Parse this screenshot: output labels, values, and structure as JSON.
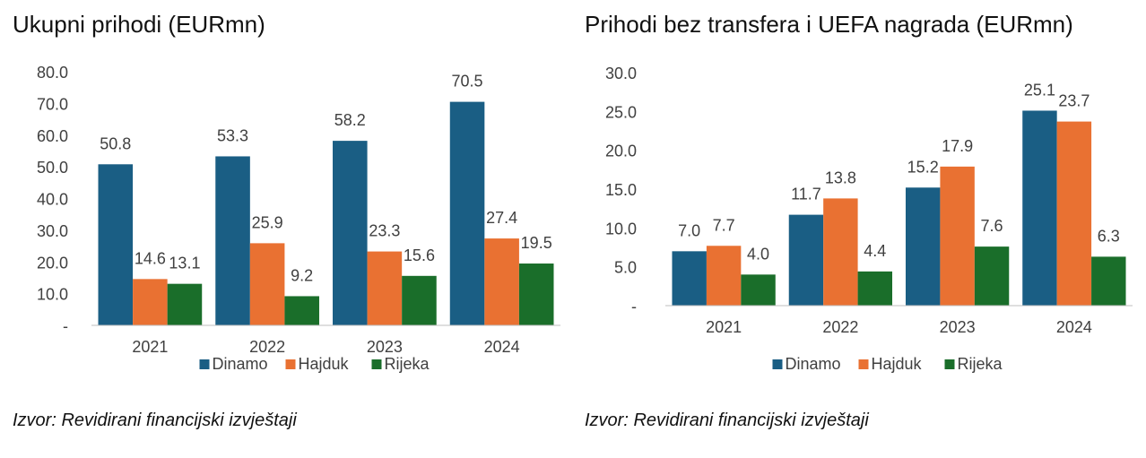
{
  "chart_data": [
    {
      "type": "bar",
      "title": "Ukupni prihodi (EURmn)",
      "categories": [
        "2021",
        "2022",
        "2023",
        "2024"
      ],
      "series": [
        {
          "name": "Dinamo",
          "values": [
            50.8,
            53.3,
            58.2,
            70.5
          ]
        },
        {
          "name": "Hajduk",
          "values": [
            14.6,
            25.9,
            23.3,
            27.4
          ]
        },
        {
          "name": "Rijeka",
          "values": [
            13.1,
            9.2,
            15.6,
            19.5
          ]
        }
      ],
      "value_labels": [
        [
          "50.8",
          "53.3",
          "58.2",
          "70.5"
        ],
        [
          "14.6",
          "25.9",
          "23.3",
          "27.4"
        ],
        [
          "13.1",
          "9.2",
          "15.6",
          "19.5"
        ]
      ],
      "ylim": [
        0,
        80
      ],
      "yticks": [
        0,
        10,
        20,
        30,
        40,
        50,
        60,
        70,
        80
      ],
      "ytick_labels": [
        "-",
        "10.0",
        "20.0",
        "30.0",
        "40.0",
        "50.0",
        "60.0",
        "70.0",
        "80.0"
      ],
      "xlabel": "",
      "ylabel": "",
      "grid": false,
      "legend": "bottom",
      "source": "Izvor: Revidirani financijski izvještaji"
    },
    {
      "type": "bar",
      "title": "Prihodi bez transfera i UEFA nagrada (EURmn)",
      "categories": [
        "2021",
        "2022",
        "2023",
        "2024"
      ],
      "series": [
        {
          "name": "Dinamo",
          "values": [
            7.0,
            11.7,
            15.2,
            25.1
          ]
        },
        {
          "name": "Hajduk",
          "values": [
            7.7,
            13.8,
            17.9,
            23.7
          ]
        },
        {
          "name": "Rijeka",
          "values": [
            4.0,
            4.4,
            7.6,
            6.3
          ]
        }
      ],
      "value_labels": [
        [
          "7.0",
          "11.7",
          "15.2",
          "25.1"
        ],
        [
          "7.7",
          "13.8",
          "17.9",
          "23.7"
        ],
        [
          "4.0",
          "4.4",
          "7.6",
          "6.3"
        ]
      ],
      "ylim": [
        0,
        30
      ],
      "yticks": [
        0,
        5,
        10,
        15,
        20,
        25,
        30
      ],
      "ytick_labels": [
        "-",
        "5.0",
        "10.0",
        "15.0",
        "20.0",
        "25.0",
        "30.0"
      ],
      "xlabel": "",
      "ylabel": "",
      "grid": false,
      "legend": "bottom",
      "source": "Izvor: Revidirani financijski izvještaji"
    }
  ],
  "colors": {
    "Dinamo": "#1a5e84",
    "Hajduk": "#e97132",
    "Rijeka": "#1a6e2a",
    "axis": "#bfbfbf",
    "text": "#404040"
  }
}
